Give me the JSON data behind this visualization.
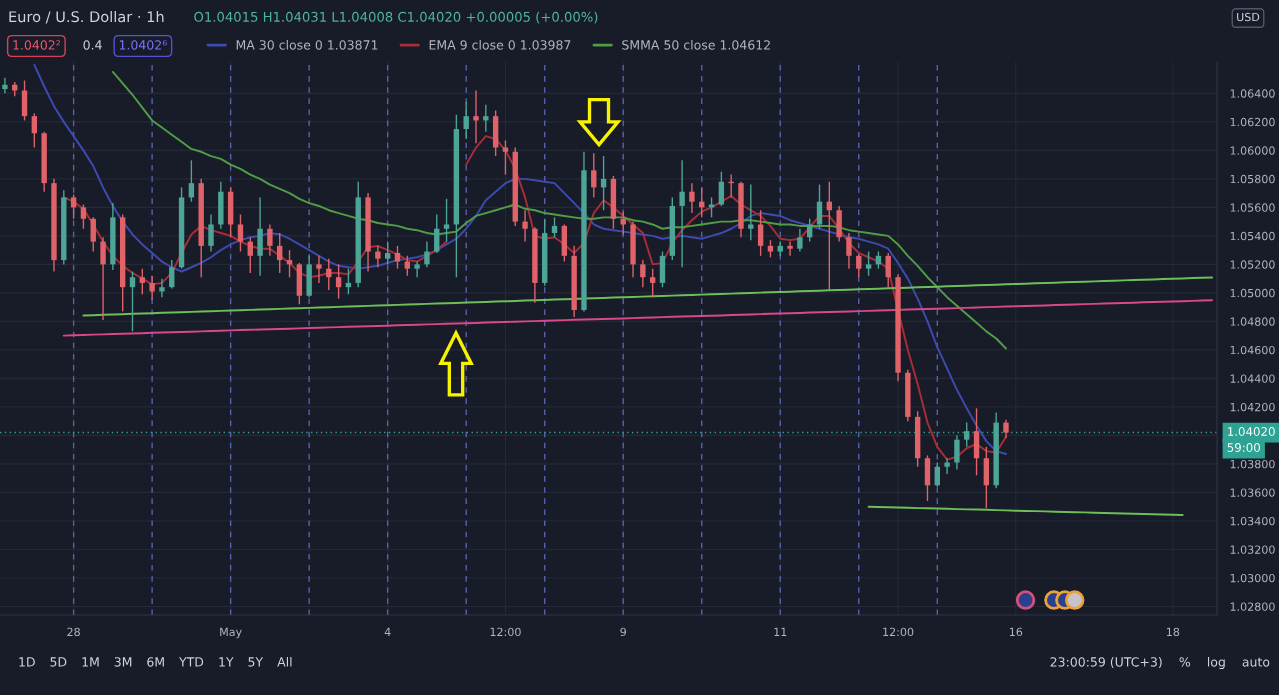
{
  "chart_data": {
    "type": "candlestick",
    "title": "Euro / U.S. Dollar · 1h",
    "categories": [
      null,
      null,
      null,
      null,
      null,
      null,
      null,
      "28",
      null,
      null,
      null,
      null,
      null,
      null,
      null,
      null,
      null,
      null,
      null,
      null,
      null,
      null,
      null,
      "May",
      null,
      null,
      null,
      null,
      null,
      null,
      null,
      null,
      null,
      null,
      null,
      null,
      null,
      null,
      null,
      "4",
      null,
      null,
      null,
      null,
      null,
      null,
      null,
      null,
      null,
      null,
      null,
      "12:00",
      null,
      null,
      null,
      null,
      null,
      null,
      null,
      null,
      null,
      null,
      null,
      "9",
      null,
      null,
      null,
      null,
      null,
      null,
      null,
      null,
      null,
      null,
      null,
      null,
      null,
      null,
      null,
      "11",
      null,
      null,
      null,
      null,
      null,
      null,
      null,
      null,
      null,
      null,
      null,
      "12:00",
      null,
      null,
      null,
      null,
      null,
      null,
      null,
      null,
      null,
      null,
      null,
      "16",
      null,
      null,
      null,
      null,
      null,
      null,
      null,
      null,
      null,
      null,
      null,
      null,
      null,
      null,
      null,
      "18",
      null,
      null,
      null,
      null
    ],
    "ohlc": [
      [
        1.0643,
        1.0651,
        1.064,
        1.0646
      ],
      [
        1.0646,
        1.0648,
        1.0638,
        1.0642
      ],
      [
        1.0642,
        1.0649,
        1.0621,
        1.0624
      ],
      [
        1.0624,
        1.0626,
        1.0602,
        1.0612
      ],
      [
        1.0612,
        1.0613,
        1.0571,
        1.0577
      ],
      [
        1.0577,
        1.058,
        1.0515,
        1.0523
      ],
      [
        1.0523,
        1.0572,
        1.052,
        1.0567
      ],
      [
        1.0567,
        1.0569,
        1.0552,
        1.056
      ],
      [
        1.056,
        1.0562,
        1.0545,
        1.0552
      ],
      [
        1.0552,
        1.0553,
        1.0529,
        1.0536
      ],
      [
        1.0536,
        1.0539,
        1.0481,
        1.052
      ],
      [
        1.052,
        1.0563,
        1.0516,
        1.0553
      ],
      [
        1.0553,
        1.0555,
        1.0487,
        1.0504
      ],
      [
        1.0504,
        1.0515,
        1.0473,
        1.0511
      ],
      [
        1.0511,
        1.0517,
        1.0499,
        1.0507
      ],
      [
        1.0507,
        1.0512,
        1.0495,
        1.0501
      ],
      [
        1.0501,
        1.051,
        1.0497,
        1.0504
      ],
      [
        1.0504,
        1.0523,
        1.0503,
        1.0518
      ],
      [
        1.0518,
        1.0574,
        1.0517,
        1.0567
      ],
      [
        1.0567,
        1.0593,
        1.0564,
        1.0577
      ],
      [
        1.0577,
        1.058,
        1.0511,
        1.0533
      ],
      [
        1.0533,
        1.0555,
        1.0529,
        1.0548
      ],
      [
        1.0548,
        1.0578,
        1.0545,
        1.0571
      ],
      [
        1.0571,
        1.0574,
        1.0539,
        1.0548
      ],
      [
        1.0548,
        1.0555,
        1.0529,
        1.0536
      ],
      [
        1.0536,
        1.0539,
        1.0514,
        1.0526
      ],
      [
        1.0526,
        1.0567,
        1.0512,
        1.0545
      ],
      [
        1.0545,
        1.0548,
        1.0526,
        1.0533
      ],
      [
        1.0533,
        1.0542,
        1.0514,
        1.0523
      ],
      [
        1.0523,
        1.053,
        1.0511,
        1.052
      ],
      [
        1.052,
        1.0521,
        1.0492,
        1.0498
      ],
      [
        1.0498,
        1.0526,
        1.0497,
        1.052
      ],
      [
        1.052,
        1.0526,
        1.0507,
        1.0517
      ],
      [
        1.0517,
        1.0524,
        1.0502,
        1.0511
      ],
      [
        1.0511,
        1.052,
        1.0496,
        1.0504
      ],
      [
        1.0504,
        1.0517,
        1.0499,
        1.0507
      ],
      [
        1.0507,
        1.0578,
        1.0504,
        1.0567
      ],
      [
        1.0567,
        1.057,
        1.0515,
        1.0529
      ],
      [
        1.0529,
        1.0533,
        1.0518,
        1.0524
      ],
      [
        1.0524,
        1.0536,
        1.052,
        1.0528
      ],
      [
        1.0528,
        1.0533,
        1.0517,
        1.0522
      ],
      [
        1.0522,
        1.0526,
        1.0512,
        1.0517
      ],
      [
        1.0517,
        1.0522,
        1.0511,
        1.052
      ],
      [
        1.052,
        1.0536,
        1.0518,
        1.0529
      ],
      [
        1.0529,
        1.0555,
        1.0528,
        1.0545
      ],
      [
        1.0545,
        1.0566,
        1.0536,
        1.0548
      ],
      [
        1.0548,
        1.0625,
        1.0511,
        1.0615
      ],
      [
        1.0615,
        1.0634,
        1.0608,
        1.0624
      ],
      [
        1.0624,
        1.0642,
        1.0605,
        1.0621
      ],
      [
        1.0621,
        1.0632,
        1.0613,
        1.0624
      ],
      [
        1.0624,
        1.0628,
        1.0596,
        1.0602
      ],
      [
        1.0602,
        1.0607,
        1.0583,
        1.0599
      ],
      [
        1.0599,
        1.0602,
        1.0547,
        1.055
      ],
      [
        1.055,
        1.0558,
        1.0536,
        1.0545
      ],
      [
        1.0545,
        1.0546,
        1.0493,
        1.0507
      ],
      [
        1.0507,
        1.0552,
        1.0505,
        1.0542
      ],
      [
        1.0542,
        1.0553,
        1.0539,
        1.0547
      ],
      [
        1.0547,
        1.0548,
        1.0522,
        1.0526
      ],
      [
        1.0526,
        1.0533,
        1.0483,
        1.0488
      ],
      [
        1.0488,
        1.0599,
        1.0487,
        1.0586
      ],
      [
        1.0586,
        1.0598,
        1.0567,
        1.0574
      ],
      [
        1.0574,
        1.0596,
        1.0558,
        1.058
      ],
      [
        1.058,
        1.0582,
        1.0545,
        1.0552
      ],
      [
        1.0552,
        1.0557,
        1.0541,
        1.0548
      ],
      [
        1.0548,
        1.055,
        1.0511,
        1.052
      ],
      [
        1.052,
        1.0523,
        1.0504,
        1.0511
      ],
      [
        1.0511,
        1.0517,
        1.0497,
        1.0507
      ],
      [
        1.0507,
        1.0529,
        1.0504,
        1.0526
      ],
      [
        1.0526,
        1.0567,
        1.0523,
        1.0561
      ],
      [
        1.0561,
        1.0593,
        1.0518,
        1.0571
      ],
      [
        1.0571,
        1.0577,
        1.0556,
        1.0564
      ],
      [
        1.0564,
        1.0574,
        1.0553,
        1.056
      ],
      [
        1.056,
        1.0567,
        1.0553,
        1.0562
      ],
      [
        1.0562,
        1.0585,
        1.0561,
        1.0578
      ],
      [
        1.0578,
        1.0583,
        1.0567,
        1.0577
      ],
      [
        1.0577,
        1.0578,
        1.0539,
        1.0545
      ],
      [
        1.0545,
        1.0576,
        1.0537,
        1.0548
      ],
      [
        1.0548,
        1.0558,
        1.0526,
        1.0533
      ],
      [
        1.0533,
        1.0537,
        1.0525,
        1.0529
      ],
      [
        1.0529,
        1.0536,
        1.0526,
        1.0533
      ],
      [
        1.0533,
        1.0536,
        1.0526,
        1.0531
      ],
      [
        1.0531,
        1.0545,
        1.0529,
        1.0539
      ],
      [
        1.0539,
        1.0552,
        1.0536,
        1.0548
      ],
      [
        1.0548,
        1.0576,
        1.0545,
        1.0564
      ],
      [
        1.0564,
        1.0578,
        1.0502,
        1.0558
      ],
      [
        1.0558,
        1.0561,
        1.0536,
        1.0539
      ],
      [
        1.0539,
        1.0542,
        1.0517,
        1.0526
      ],
      [
        1.0526,
        1.0527,
        1.0511,
        1.0517
      ],
      [
        1.0517,
        1.0529,
        1.0512,
        1.052
      ],
      [
        1.052,
        1.0529,
        1.0517,
        1.0526
      ],
      [
        1.0526,
        1.0528,
        1.0504,
        1.0511
      ],
      [
        1.0511,
        1.0513,
        1.0438,
        1.0444
      ],
      [
        1.0444,
        1.0446,
        1.041,
        1.0413
      ],
      [
        1.0413,
        1.0417,
        1.0378,
        1.0384
      ],
      [
        1.0384,
        1.0386,
        1.0354,
        1.0365
      ],
      [
        1.0365,
        1.0381,
        1.0364,
        1.0378
      ],
      [
        1.0378,
        1.0384,
        1.0373,
        1.0381
      ],
      [
        1.0381,
        1.04,
        1.0376,
        1.0397
      ],
      [
        1.0397,
        1.0409,
        1.0392,
        1.0403
      ],
      [
        1.0403,
        1.0419,
        1.0372,
        1.0384
      ],
      [
        1.0384,
        1.0392,
        1.0349,
        1.0365
      ],
      [
        1.0365,
        1.0416,
        1.0363,
        1.0409
      ],
      [
        1.0409,
        1.0411,
        1.0398,
        1.0402
      ],
      null,
      null,
      null,
      null,
      null,
      null,
      null,
      null,
      null,
      null,
      null,
      null,
      null,
      null,
      null,
      null,
      null,
      null,
      null,
      null,
      null
    ],
    "series": [
      {
        "name": "MA 30 close 0 1.03871",
        "type": "line",
        "color": "#3d4bb0",
        "values": [
          null,
          null,
          null,
          1.066,
          1.0645,
          1.0631,
          1.062,
          1.061,
          1.06,
          1.0589,
          1.0574,
          1.0561,
          1.055,
          1.0541,
          1.0534,
          1.0528,
          1.0522,
          1.0518,
          1.0515,
          1.0518,
          1.0521,
          1.0525,
          1.053,
          1.0534,
          1.0537,
          1.0539,
          1.054,
          1.0542,
          1.0541,
          1.0538,
          1.0534,
          1.053,
          1.0526,
          1.0522,
          1.0519,
          1.0518,
          1.0517,
          1.0518,
          1.0519,
          1.0521,
          1.0523,
          1.0524,
          1.0525,
          1.0527,
          1.053,
          1.0534,
          1.0538,
          1.0545,
          1.0554,
          1.0565,
          1.0571,
          1.0577,
          1.058,
          1.058,
          1.0579,
          1.0578,
          1.0577,
          1.057,
          1.0563,
          1.0556,
          1.0548,
          1.0545,
          1.0544,
          1.0543,
          1.0542,
          1.0541,
          1.054,
          1.0538,
          1.0539,
          1.054,
          1.0539,
          1.0538,
          1.054,
          1.0542,
          1.0545,
          1.0549,
          1.0554,
          1.0556,
          1.0555,
          1.0554,
          1.0551,
          1.0549,
          1.0547,
          1.0545,
          1.0543,
          1.0541,
          1.0539,
          1.0538,
          1.0536,
          1.0534,
          1.0531,
          1.0521,
          1.051,
          1.0496,
          1.048,
          1.0462,
          1.0447,
          1.0432,
          1.0419,
          1.0407,
          1.0396,
          1.0389,
          1.0387,
          null,
          null,
          null,
          null,
          null,
          null,
          null,
          null,
          null,
          null,
          null,
          null,
          null,
          null,
          null,
          null,
          null,
          null,
          null,
          null,
          null
        ]
      },
      {
        "name": "EMA 9 close 0 1.03987",
        "type": "line",
        "color": "#a82d36",
        "values": [
          null,
          null,
          null,
          null,
          null,
          null,
          1.0567,
          1.0564,
          1.0559,
          1.0548,
          1.0536,
          1.0526,
          1.0519,
          1.0514,
          1.051,
          1.0506,
          1.0507,
          1.0514,
          1.0528,
          1.0541,
          1.0547,
          1.0544,
          1.0542,
          1.054,
          1.0536,
          1.0533,
          1.0531,
          1.0531,
          1.0526,
          1.0521,
          1.0514,
          1.0511,
          1.0512,
          1.0514,
          1.0514,
          1.0513,
          1.0522,
          1.0532,
          1.0533,
          1.053,
          1.0527,
          1.0523,
          1.0522,
          1.0526,
          1.053,
          1.0536,
          null,
          1.059,
          1.0602,
          1.061,
          1.0608,
          1.06,
          1.0587,
          1.0567,
          1.054,
          1.0538,
          1.0539,
          1.0534,
          1.0528,
          1.0535,
          1.0556,
          1.0565,
          1.056,
          1.0554,
          1.0548,
          1.0542,
          1.052,
          1.0521,
          1.0535,
          1.0544,
          1.0551,
          1.0557,
          1.056,
          1.0564,
          1.0568,
          1.0562,
          1.0558,
          1.0554,
          1.0547,
          1.0538,
          1.0537,
          1.0538,
          1.0546,
          1.0554,
          1.0554,
          1.0545,
          1.0535,
          1.0528,
          1.0525,
          1.0522,
          1.0517,
          1.0488,
          1.046,
          1.0436,
          1.0409,
          1.0392,
          1.0383,
          1.0385,
          1.0391,
          1.0394,
          1.0389,
          1.0388,
          1.0399,
          null,
          null,
          null,
          null,
          null,
          null,
          null,
          null,
          null,
          null,
          null,
          null,
          null,
          null,
          null,
          null,
          null,
          null,
          null,
          null,
          null
        ]
      },
      {
        "name": "SMMA 50 close 1.04612",
        "type": "line",
        "color": "#4f9e45",
        "values": [
          null,
          null,
          null,
          null,
          null,
          null,
          null,
          null,
          null,
          null,
          null,
          1.0655,
          1.0647,
          1.0639,
          1.063,
          1.0621,
          1.0616,
          1.0611,
          1.0606,
          1.0601,
          1.0599,
          1.0596,
          1.0594,
          1.059,
          1.0587,
          1.0583,
          1.058,
          1.0576,
          1.0573,
          1.057,
          1.0566,
          1.0563,
          1.0561,
          1.0558,
          1.0556,
          1.0554,
          1.0552,
          1.0551,
          1.0549,
          1.0548,
          1.0547,
          1.0545,
          1.0544,
          1.0542,
          1.0541,
          1.0542,
          1.0543,
          1.0549,
          1.0554,
          1.0556,
          1.0558,
          1.056,
          1.0562,
          1.0559,
          1.0558,
          1.0556,
          1.0555,
          1.0554,
          1.0553,
          1.0552,
          1.0552,
          1.0553,
          1.0553,
          1.0553,
          1.0551,
          1.055,
          1.0548,
          1.0545,
          1.0546,
          1.0546,
          1.0547,
          1.0548,
          1.0549,
          1.055,
          1.055,
          1.0551,
          1.0551,
          1.055,
          1.0549,
          1.0548,
          1.0548,
          1.0547,
          1.0547,
          1.0547,
          1.0547,
          1.0546,
          1.0544,
          1.0543,
          1.0542,
          1.0541,
          1.054,
          1.0534,
          1.0526,
          1.0519,
          1.0511,
          1.0504,
          1.0497,
          1.0491,
          1.0485,
          1.0479,
          1.0473,
          1.0468,
          1.0461,
          null,
          null,
          null,
          null,
          null,
          null,
          null,
          null,
          null,
          null,
          null,
          null,
          null,
          null,
          null,
          null,
          null,
          null,
          null,
          null,
          null
        ]
      },
      {
        "type": "line",
        "color": "#6cbf5a",
        "values": [
          null,
          null,
          null,
          null,
          null,
          null,
          null,
          null,
          1.04841,
          1.04843,
          1.04846,
          1.04848,
          1.0485,
          1.04853,
          1.04855,
          1.04857,
          1.0486,
          1.04862,
          1.04864,
          1.04867,
          1.04869,
          1.04871,
          1.04874,
          1.04876,
          1.04878,
          1.04881,
          1.04883,
          1.04885,
          1.04888,
          1.0489,
          1.04892,
          1.04895,
          1.04897,
          1.04899,
          1.04902,
          1.04904,
          1.04906,
          1.04909,
          1.04911,
          1.04913,
          1.04916,
          1.04918,
          1.0492,
          1.04923,
          1.04925,
          1.04927,
          1.04929,
          1.04932,
          1.04934,
          1.04936,
          1.04939,
          1.04941,
          1.04943,
          1.04946,
          1.04948,
          1.0495,
          1.04953,
          1.04955,
          1.04957,
          1.0496,
          1.04962,
          1.04964,
          1.04967,
          1.04969,
          1.04971,
          1.04974,
          1.04976,
          1.04978,
          1.04981,
          1.04983,
          1.04985,
          1.04988,
          1.0499,
          1.04992,
          1.04995,
          1.04997,
          1.04999,
          1.05002,
          1.05004,
          1.05006,
          1.05008,
          1.05011,
          1.05013,
          1.05015,
          1.05018,
          1.0502,
          1.05022,
          1.05025,
          1.05027,
          1.05029,
          1.05032,
          1.05034,
          1.05036,
          1.05039,
          1.05041,
          1.05043,
          1.05046,
          1.05048,
          1.0505,
          1.05053,
          1.05055,
          1.05057,
          1.0506,
          1.05062,
          1.05064,
          1.05067,
          1.05069,
          1.05071,
          1.05074,
          1.05076,
          1.05078,
          1.05081,
          1.05083,
          1.05085,
          1.05088,
          1.0509,
          1.05092,
          1.05094,
          1.05097,
          1.05099,
          1.05101,
          1.05104,
          1.05106,
          1.05108
        ]
      },
      {
        "type": "line",
        "color": "#d9478d",
        "values": [
          null,
          null,
          null,
          null,
          null,
          null,
          1.047,
          1.04703,
          1.04705,
          1.04707,
          1.04709,
          1.04711,
          1.04713,
          1.04715,
          1.04717,
          1.0472,
          1.04722,
          1.04724,
          1.04726,
          1.04728,
          1.0473,
          1.04732,
          1.04734,
          1.04737,
          1.04739,
          1.04741,
          1.04743,
          1.04745,
          1.04747,
          1.04749,
          1.04751,
          1.04753,
          1.04756,
          1.04758,
          1.0476,
          1.04762,
          1.04764,
          1.04766,
          1.04768,
          1.0477,
          1.04773,
          1.04775,
          1.04777,
          1.04779,
          1.04781,
          1.04783,
          1.04785,
          1.04787,
          1.04789,
          1.04792,
          1.04794,
          1.04796,
          1.04798,
          1.048,
          1.04802,
          1.04804,
          1.04806,
          1.04809,
          1.04811,
          1.04813,
          1.04815,
          1.04817,
          1.04819,
          1.04821,
          1.04823,
          1.04826,
          1.04828,
          1.0483,
          1.04832,
          1.04834,
          1.04836,
          1.04838,
          1.0484,
          1.04842,
          1.04845,
          1.04847,
          1.04849,
          1.04851,
          1.04853,
          1.04855,
          1.04857,
          1.04859,
          1.04862,
          1.04864,
          1.04866,
          1.04868,
          1.0487,
          1.04872,
          1.04874,
          1.04876,
          1.04878,
          1.04881,
          1.04883,
          1.04885,
          1.04887,
          1.04889,
          1.04891,
          1.04893,
          1.04895,
          1.04898,
          1.049,
          1.04902,
          1.04904,
          1.04906,
          1.04908,
          1.0491,
          1.04912,
          1.04915,
          1.04917,
          1.04919,
          1.04921,
          1.04923,
          1.04925,
          1.04927,
          1.04929,
          1.04931,
          1.04934,
          1.04936,
          1.04938,
          1.0494,
          1.04942,
          1.04944,
          1.04946,
          1.04948
        ]
      },
      {
        "type": "line",
        "color": "#6cbf5a",
        "values": [
          null,
          null,
          null,
          null,
          null,
          null,
          null,
          null,
          null,
          null,
          null,
          null,
          null,
          null,
          null,
          null,
          null,
          null,
          null,
          null,
          null,
          null,
          null,
          null,
          null,
          null,
          null,
          null,
          null,
          null,
          null,
          null,
          null,
          null,
          null,
          null,
          null,
          null,
          null,
          null,
          null,
          null,
          null,
          null,
          null,
          null,
          null,
          null,
          null,
          null,
          null,
          null,
          null,
          null,
          null,
          null,
          null,
          null,
          null,
          null,
          null,
          null,
          null,
          null,
          null,
          null,
          null,
          null,
          null,
          null,
          null,
          null,
          null,
          null,
          null,
          null,
          null,
          null,
          null,
          null,
          null,
          null,
          null,
          null,
          null,
          null,
          null,
          null,
          1.035,
          1.03498,
          1.03496,
          1.03494,
          1.03492,
          1.0349,
          1.03489,
          1.03487,
          1.03485,
          1.03483,
          1.03481,
          1.0348,
          1.03478,
          1.03476,
          1.03474,
          1.03472,
          1.0347,
          1.03469,
          1.03467,
          1.03465,
          1.03463,
          1.03461,
          1.0346,
          1.03458,
          1.03456,
          1.03454,
          1.03452,
          1.03451,
          1.03449,
          1.03447,
          1.03445,
          1.03443,
          1.03441,
          null,
          null,
          null
        ]
      }
    ],
    "ylim": [
      1.0274,
      1.0662
    ],
    "yticks": [
      {
        "value": 1.028,
        "label": "1.02800"
      },
      {
        "value": 1.03,
        "label": "1.03000"
      },
      {
        "value": 1.032,
        "label": "1.03200"
      },
      {
        "value": 1.034,
        "label": "1.03400"
      },
      {
        "value": 1.036,
        "label": "1.03600"
      },
      {
        "value": 1.038,
        "label": "1.03800"
      },
      {
        "value": 1.04,
        "label": null
      },
      {
        "value": 1.042,
        "label": "1.04200"
      },
      {
        "value": 1.044,
        "label": "1.04400"
      },
      {
        "value": 1.046,
        "label": "1.04600"
      },
      {
        "value": 1.048,
        "label": "1.04800"
      },
      {
        "value": 1.05,
        "label": "1.05000"
      },
      {
        "value": 1.052,
        "label": "1.05200"
      },
      {
        "value": 1.054,
        "label": "1.05400"
      },
      {
        "value": 1.056,
        "label": "1.05600"
      },
      {
        "value": 1.058,
        "label": "1.05800"
      },
      {
        "value": 1.06,
        "label": "1.06000"
      },
      {
        "value": 1.062,
        "label": "1.06200"
      },
      {
        "value": 1.064,
        "label": "1.06400"
      }
    ],
    "ref_lines": [
      {
        "axis": "y",
        "value": 1.0402,
        "label": "1.04020",
        "color": "#2fa393",
        "line_style": "dotted"
      }
    ],
    "grid": true,
    "legend": "top left",
    "annotations": [
      "O1.04015 H1.04031 L1.04008 C1.04020 +0.00005 (+0.00%)",
      "1.0402²",
      "0.4",
      "1.0402⁶",
      "USD",
      "59:00",
      "1D",
      "5D",
      "1M",
      "3M",
      "6M",
      "YTD",
      "1Y",
      "5Y",
      "All",
      "23:00:59 (UTC+3)",
      "%",
      "log",
      "auto"
    ]
  }
}
